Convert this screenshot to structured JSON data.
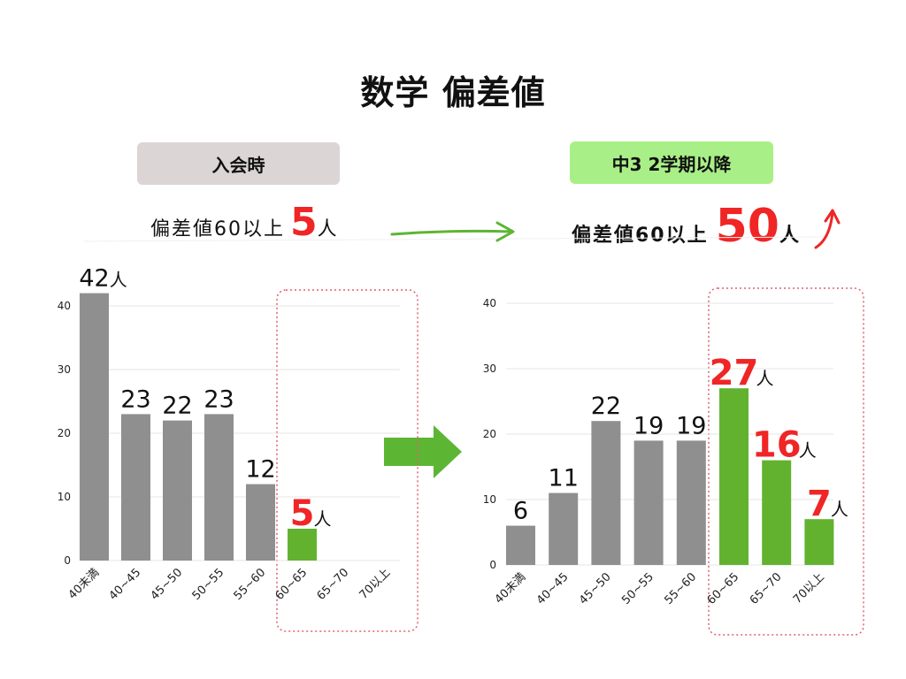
{
  "title": "数学 偏差値",
  "colors": {
    "gray_bar": "#8f8f8f",
    "green_bar": "#62b22f",
    "red_text": "#f02525",
    "box_outline": "#e06070",
    "arrow_green": "#5db534"
  },
  "left": {
    "badge": "入会時",
    "summary_label": "偏差値60以上",
    "summary_value": "5",
    "summary_unit": "人"
  },
  "right": {
    "badge": "中3  2学期以降",
    "summary_label": "偏差値60以上",
    "summary_value": "50",
    "summary_unit": "人"
  },
  "chart_data": [
    {
      "type": "bar",
      "categories": [
        "40未満",
        "40~45",
        "45~50",
        "50~55",
        "55~60",
        "60~65",
        "65~70",
        "70以上"
      ],
      "values": [
        42,
        23,
        22,
        23,
        12,
        5,
        0,
        0
      ],
      "value_labels": [
        "42",
        "23",
        "22",
        "23",
        "12",
        "5",
        "",
        ""
      ],
      "unit_labels": [
        "人",
        "",
        "",
        "",
        "",
        "人",
        "",
        ""
      ],
      "highlight": [
        false,
        false,
        false,
        false,
        false,
        true,
        true,
        true
      ],
      "yticks": [
        0,
        10,
        20,
        30,
        40
      ],
      "ylim": [
        0,
        42
      ],
      "grid": true
    },
    {
      "type": "bar",
      "categories": [
        "40未満",
        "40~45",
        "45~50",
        "50~55",
        "55~60",
        "60~65",
        "65~70",
        "70以上"
      ],
      "values": [
        6,
        11,
        22,
        19,
        19,
        27,
        16,
        7
      ],
      "value_labels": [
        "6",
        "11",
        "22",
        "19",
        "19",
        "27",
        "16",
        "7"
      ],
      "unit_labels": [
        "",
        "",
        "",
        "",
        "",
        "人",
        "人",
        "人"
      ],
      "highlight": [
        false,
        false,
        false,
        false,
        false,
        true,
        true,
        true
      ],
      "yticks": [
        0,
        10,
        20,
        30,
        40
      ],
      "ylim": [
        0,
        40
      ],
      "grid": true
    }
  ]
}
